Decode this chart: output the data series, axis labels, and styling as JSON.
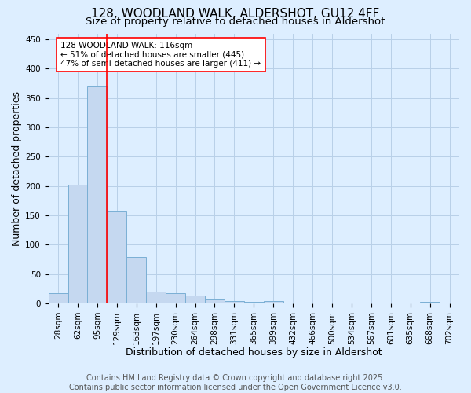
{
  "title": "128, WOODLAND WALK, ALDERSHOT, GU12 4FF",
  "subtitle": "Size of property relative to detached houses in Aldershot",
  "xlabel": "Distribution of detached houses by size in Aldershot",
  "ylabel": "Number of detached properties",
  "bar_labels": [
    "28sqm",
    "62sqm",
    "95sqm",
    "129sqm",
    "163sqm",
    "197sqm",
    "230sqm",
    "264sqm",
    "298sqm",
    "331sqm",
    "365sqm",
    "399sqm",
    "432sqm",
    "466sqm",
    "500sqm",
    "534sqm",
    "567sqm",
    "601sqm",
    "635sqm",
    "668sqm",
    "702sqm"
  ],
  "bar_values": [
    18,
    202,
    370,
    157,
    79,
    20,
    18,
    13,
    7,
    4,
    2,
    4,
    0,
    0,
    0,
    0,
    0,
    0,
    0,
    3,
    0
  ],
  "bar_color": "#c5d8f0",
  "bar_edgecolor": "#7aafd4",
  "ylim": [
    0,
    460
  ],
  "yticks": [
    0,
    50,
    100,
    150,
    200,
    250,
    300,
    350,
    400,
    450
  ],
  "vline_x": 2.5,
  "vline_color": "red",
  "annotation_text": "128 WOODLAND WALK: 116sqm\n← 51% of detached houses are smaller (445)\n47% of semi-detached houses are larger (411) →",
  "annotation_box_color": "white",
  "annotation_box_edgecolor": "red",
  "footer_line1": "Contains HM Land Registry data © Crown copyright and database right 2025.",
  "footer_line2": "Contains public sector information licensed under the Open Government Licence v3.0.",
  "background_color": "#ddeeff",
  "grid_color": "#b8d0e8",
  "title_fontsize": 11,
  "subtitle_fontsize": 9.5,
  "axis_label_fontsize": 9,
  "tick_fontsize": 7.5,
  "footer_fontsize": 7,
  "annotation_fontsize": 7.5
}
